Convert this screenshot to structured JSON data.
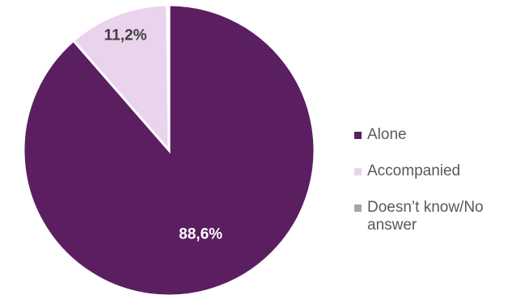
{
  "chart_data": {
    "type": "pie",
    "categories": [
      "Alone",
      "Accompanied",
      "Doesn’t know/No answer"
    ],
    "values": [
      88.6,
      11.2,
      0.2
    ],
    "value_labels": [
      "88,6%",
      "11,2%",
      ""
    ],
    "colors": [
      "#5B1F61",
      "#EAD3EC",
      "#A6A6A6"
    ],
    "label_colors": [
      "#FFFFFF",
      "#404040",
      "#404040"
    ],
    "start_angle_deg": 0,
    "direction": "clockwise",
    "legend_position": "right"
  },
  "legend": {
    "items": [
      {
        "label": "Alone",
        "color": "#5B1F61"
      },
      {
        "label": "Accompanied",
        "color": "#EAD3EC"
      },
      {
        "label": "Doesn’t know/No answer",
        "color": "#A6A6A6"
      }
    ]
  }
}
